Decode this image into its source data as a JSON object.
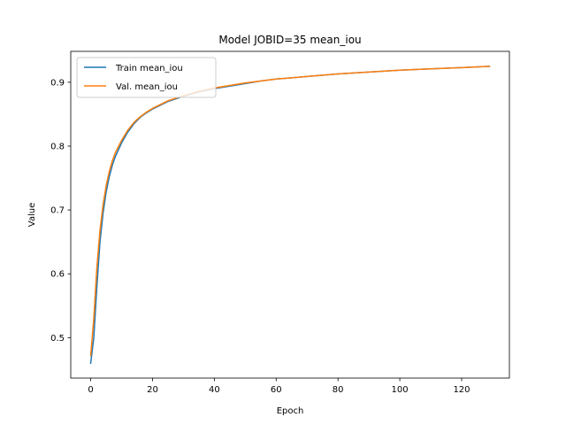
{
  "chart_data": {
    "type": "line",
    "title": "Model JOBID=35 mean_iou",
    "xlabel": "Epoch",
    "ylabel": "Value",
    "xlim": [
      -6.45,
      135.45
    ],
    "ylim": [
      0.4367,
      0.9484
    ],
    "xticks": [
      0,
      20,
      40,
      60,
      80,
      100,
      120
    ],
    "yticks": [
      0.5,
      0.6,
      0.7,
      0.8,
      0.9
    ],
    "xtick_labels": [
      "0",
      "20",
      "40",
      "60",
      "80",
      "100",
      "120"
    ],
    "ytick_labels": [
      "0.5",
      "0.6",
      "0.7",
      "0.8",
      "0.9"
    ],
    "legend_position": "top-left",
    "grid": false,
    "series": [
      {
        "name": "Train mean_iou",
        "color": "#1f77b4",
        "x": [
          0,
          1,
          2,
          3,
          4,
          5,
          6,
          7,
          8,
          10,
          12,
          14,
          16,
          18,
          20,
          25,
          30,
          35,
          40,
          45,
          50,
          55,
          60,
          65,
          70,
          80,
          90,
          100,
          110,
          120,
          129
        ],
        "y": [
          0.46,
          0.5,
          0.58,
          0.65,
          0.695,
          0.728,
          0.752,
          0.77,
          0.784,
          0.805,
          0.822,
          0.835,
          0.845,
          0.852,
          0.858,
          0.87,
          0.878,
          0.885,
          0.89,
          0.894,
          0.898,
          0.902,
          0.905,
          0.907,
          0.909,
          0.913,
          0.916,
          0.919,
          0.921,
          0.923,
          0.925
        ]
      },
      {
        "name": "Val. mean_iou",
        "color": "#ff7f0e",
        "x": [
          0,
          1,
          2,
          3,
          4,
          5,
          6,
          7,
          8,
          10,
          12,
          14,
          16,
          18,
          20,
          25,
          30,
          35,
          40,
          45,
          50,
          55,
          60,
          65,
          70,
          80,
          90,
          100,
          110,
          120,
          129
        ],
        "y": [
          0.472,
          0.53,
          0.61,
          0.668,
          0.708,
          0.738,
          0.76,
          0.777,
          0.79,
          0.809,
          0.825,
          0.837,
          0.846,
          0.853,
          0.859,
          0.871,
          0.879,
          0.886,
          0.891,
          0.895,
          0.899,
          0.902,
          0.905,
          0.907,
          0.909,
          0.913,
          0.916,
          0.919,
          0.921,
          0.923,
          0.925
        ]
      }
    ]
  }
}
